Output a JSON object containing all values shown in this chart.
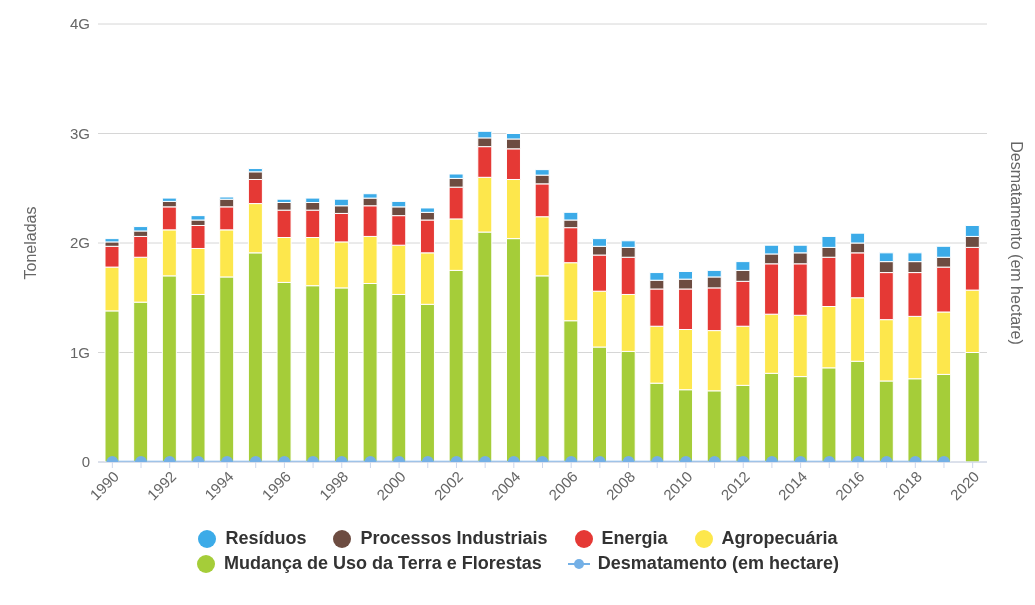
{
  "chart_data": {
    "type": "bar",
    "stacked": true,
    "ylabel": "Toneladas",
    "y2label": "Desmatamento (em hectare)",
    "categories": [
      "1990",
      null,
      "1992",
      null,
      "1994",
      null,
      "1996",
      null,
      "1998",
      null,
      "2000",
      null,
      "2002",
      null,
      "2004",
      null,
      "2006",
      null,
      "2008",
      null,
      "2010",
      null,
      "2012",
      null,
      "2014",
      null,
      "2016",
      null,
      "2018",
      null,
      "2020"
    ],
    "ylim": [
      0,
      4
    ],
    "yticks": [
      0,
      {
        "value": 1,
        "label": "1G"
      },
      {
        "value": 2,
        "label": "2G"
      },
      {
        "value": 3,
        "label": "3G"
      },
      {
        "value": 4,
        "label": "4G"
      }
    ],
    "grid": "y",
    "legend": "bottom",
    "marker": "circle",
    "line_style": "solid",
    "series": [
      {
        "name": "Mudança de Uso da Terra e Florestas",
        "color": "#a5cd39",
        "values": [
          1.38,
          1.46,
          1.7,
          1.53,
          1.69,
          1.91,
          1.64,
          1.61,
          1.59,
          1.63,
          1.53,
          1.44,
          1.75,
          2.1,
          2.04,
          1.7,
          1.29,
          1.05,
          1.01,
          0.72,
          0.66,
          0.65,
          0.7,
          0.81,
          0.78,
          0.86,
          0.92,
          0.74,
          0.76,
          0.8,
          1.0
        ]
      },
      {
        "name": "Agropecuária",
        "color": "#fde74c",
        "values": [
          0.4,
          0.41,
          0.42,
          0.42,
          0.43,
          0.45,
          0.41,
          0.44,
          0.42,
          0.43,
          0.45,
          0.47,
          0.47,
          0.5,
          0.54,
          0.54,
          0.53,
          0.51,
          0.52,
          0.52,
          0.55,
          0.55,
          0.54,
          0.54,
          0.56,
          0.56,
          0.58,
          0.56,
          0.57,
          0.57,
          0.57
        ]
      },
      {
        "name": "Energia",
        "color": "#e53935",
        "values": [
          0.19,
          0.19,
          0.21,
          0.21,
          0.21,
          0.22,
          0.25,
          0.25,
          0.26,
          0.28,
          0.27,
          0.3,
          0.29,
          0.28,
          0.28,
          0.3,
          0.32,
          0.33,
          0.34,
          0.34,
          0.37,
          0.39,
          0.41,
          0.46,
          0.47,
          0.45,
          0.41,
          0.43,
          0.4,
          0.41,
          0.39
        ]
      },
      {
        "name": "Processos Industriais",
        "color": "#6d4c41",
        "values": [
          0.04,
          0.05,
          0.05,
          0.05,
          0.07,
          0.07,
          0.07,
          0.07,
          0.07,
          0.07,
          0.08,
          0.07,
          0.08,
          0.08,
          0.09,
          0.08,
          0.07,
          0.08,
          0.09,
          0.08,
          0.09,
          0.1,
          0.1,
          0.09,
          0.1,
          0.09,
          0.09,
          0.1,
          0.1,
          0.09,
          0.1
        ]
      },
      {
        "name": "Resíduos",
        "color": "#3cabe8",
        "values": [
          0.03,
          0.04,
          0.03,
          0.04,
          0.02,
          0.03,
          0.03,
          0.04,
          0.06,
          0.04,
          0.05,
          0.04,
          0.04,
          0.06,
          0.05,
          0.05,
          0.07,
          0.07,
          0.06,
          0.07,
          0.07,
          0.06,
          0.08,
          0.08,
          0.07,
          0.1,
          0.09,
          0.08,
          0.08,
          0.1,
          0.1
        ]
      },
      {
        "name": "Desmatamento (em hectare)",
        "type": "line",
        "color": "#74b0e6",
        "values": [
          0,
          0,
          0,
          0,
          0,
          0,
          0,
          0,
          0,
          0,
          0,
          0,
          0,
          0,
          0,
          0,
          0,
          0,
          0,
          0,
          0,
          0,
          0,
          0,
          0,
          0,
          0,
          0,
          0,
          0,
          null
        ]
      }
    ]
  }
}
